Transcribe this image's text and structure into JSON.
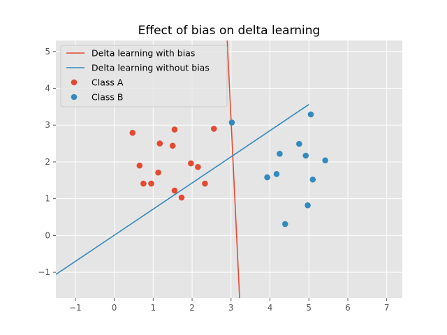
{
  "chart_data": {
    "type": "scatter",
    "title": "Effect of bias on delta learning",
    "xlabel": "",
    "ylabel": "",
    "xlim": [
      -1.5,
      7.4
    ],
    "ylim": [
      -1.7,
      5.3
    ],
    "xticks": [
      -1,
      0,
      1,
      2,
      3,
      4,
      5,
      6,
      7
    ],
    "yticks": [
      -1,
      0,
      1,
      2,
      3,
      4,
      5
    ],
    "xtick_labels": [
      "−1",
      "0",
      "1",
      "2",
      "3",
      "4",
      "5",
      "6",
      "7"
    ],
    "ytick_labels": [
      "−1",
      "0",
      "1",
      "2",
      "3",
      "4",
      "5"
    ],
    "grid": true,
    "legend_position": "top-left",
    "colors": {
      "red": "#E24A33",
      "blue": "#348ABD",
      "background": "#E5E5E5",
      "grid": "#FFFFFF"
    },
    "series": [
      {
        "name": "Delta learning with bias",
        "kind": "line",
        "color": "#E24A33",
        "x": [
          2.9,
          3.22
        ],
        "y": [
          5.35,
          -1.7
        ]
      },
      {
        "name": "Delta learning without bias",
        "kind": "line",
        "color": "#348ABD",
        "x": [
          -1.5,
          5.0
        ],
        "y": [
          -1.06,
          3.56
        ]
      },
      {
        "name": "Class A",
        "kind": "scatter",
        "color": "#E24A33",
        "x": [
          0.47,
          0.65,
          0.75,
          0.95,
          1.13,
          1.17,
          1.5,
          1.55,
          1.55,
          1.73,
          1.97,
          2.15,
          2.33,
          2.56
        ],
        "y": [
          2.79,
          1.9,
          1.41,
          1.41,
          1.71,
          2.5,
          2.44,
          2.88,
          1.22,
          1.03,
          1.96,
          1.86,
          1.41,
          2.9
        ]
      },
      {
        "name": "Class B",
        "kind": "scatter",
        "color": "#348ABD",
        "x": [
          3.02,
          3.93,
          4.17,
          4.25,
          4.39,
          4.75,
          4.92,
          4.97,
          5.05,
          5.1,
          5.42
        ],
        "y": [
          3.07,
          1.58,
          1.67,
          2.22,
          0.31,
          2.49,
          2.17,
          0.82,
          3.29,
          1.52,
          2.04
        ]
      }
    ]
  }
}
